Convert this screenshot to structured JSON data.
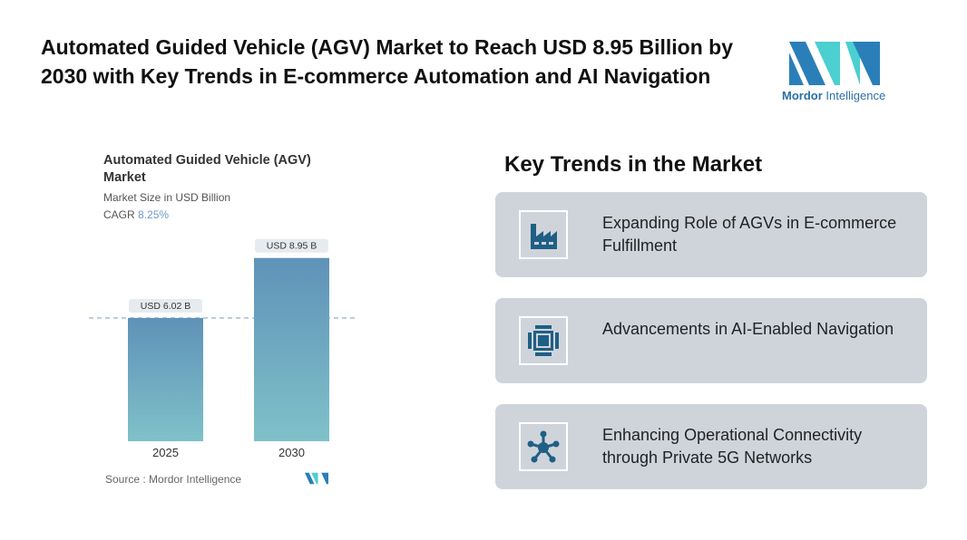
{
  "title": "Automated Guided Vehicle (AGV) Market to Reach USD 8.95 Billion by 2030 with Key Trends in E-commerce Automation and AI Navigation",
  "logo": {
    "brand": "Mordor",
    "suffix": "Intelligence"
  },
  "chart_data": {
    "type": "bar",
    "title": "Automated Guided Vehicle (AGV) Market",
    "subtitle": "Market Size in USD Billion",
    "cagr_label": "CAGR",
    "cagr_value": "8.25%",
    "categories": [
      "2025",
      "2030"
    ],
    "values": [
      6.02,
      8.95
    ],
    "data_labels": [
      "USD 6.02 B",
      "USD 8.95 B"
    ],
    "xlabel": "",
    "ylabel": "",
    "ylim": [
      0,
      9.5
    ],
    "source": "Source :  Mordor Intelligence",
    "colors": {
      "top": "#5f92b8",
      "bottom": "#7fc1c9"
    }
  },
  "trends": {
    "heading": "Key Trends in the Market",
    "items": [
      {
        "icon": "factory-icon",
        "text": "Expanding Role of AGVs in E-commerce Fulfillment"
      },
      {
        "icon": "chip-icon",
        "text": "Advancements in AI-Enabled Navigation"
      },
      {
        "icon": "network-icon",
        "text": "Enhancing Operational Connectivity through Private 5G Networks"
      }
    ]
  }
}
